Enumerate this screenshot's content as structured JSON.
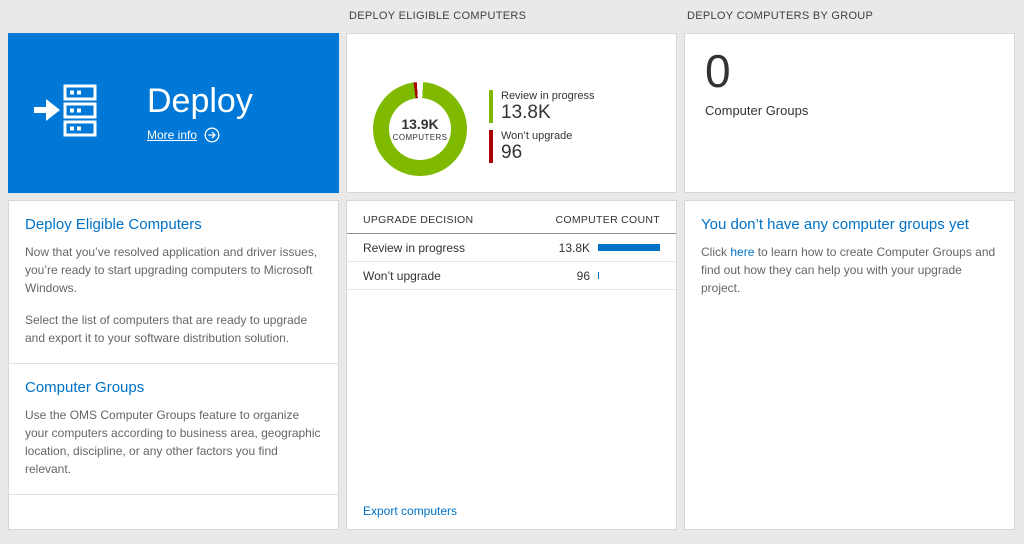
{
  "page": {
    "background": "#e9e9e9",
    "accent_blue": "#0072c6",
    "tile_blue": "#0078d7"
  },
  "column_headers": {
    "middle": "DEPLOY ELIGIBLE COMPUTERS",
    "right": "DEPLOY COMPUTERS BY GROUP"
  },
  "deploy_tile": {
    "title": "Deploy",
    "more_info_label": "More info"
  },
  "left_card": {
    "section1": {
      "title": "Deploy Eligible Computers",
      "p1": "Now that you’ve resolved application and driver issues, you’re ready to start upgrading computers to Microsoft Windows.",
      "p2": "Select the list of computers that are ready to upgrade and export it to your software distribution solution."
    },
    "section2": {
      "title": "Computer Groups",
      "p1": "Use the OMS Computer Groups feature to organize your computers according to business area, geographic location, discipline, or any other factors you find relevant."
    }
  },
  "chart_data": {
    "type": "pie",
    "title": "DEPLOY ELIGIBLE COMPUTERS",
    "center_value": "13.9K",
    "center_label": "COMPUTERS",
    "series": [
      {
        "name": "Review in progress",
        "value": 13800,
        "display": "13.8K",
        "color": "#7fba00"
      },
      {
        "name": "Won’t upgrade",
        "value": 96,
        "display": "96",
        "color": "#a80000"
      }
    ],
    "legend_position": "right"
  },
  "table": {
    "columns": [
      "UPGRADE DECISION",
      "COMPUTER COUNT"
    ],
    "rows": [
      {
        "decision": "Review in progress",
        "count": "13.8K",
        "bar_pct": 100
      },
      {
        "decision": "Won’t upgrade",
        "count": "96",
        "bar_pct": 2
      }
    ],
    "bar_color": "#0072c6",
    "export_label": "Export computers"
  },
  "groups_tile": {
    "count": "0",
    "label": "Computer Groups"
  },
  "groups_card": {
    "title": "You don’t have any computer groups yet",
    "body_pre": "Click ",
    "link_text": "here",
    "body_post": " to learn how to create Computer Groups and find out how they can help you with your upgrade project."
  }
}
